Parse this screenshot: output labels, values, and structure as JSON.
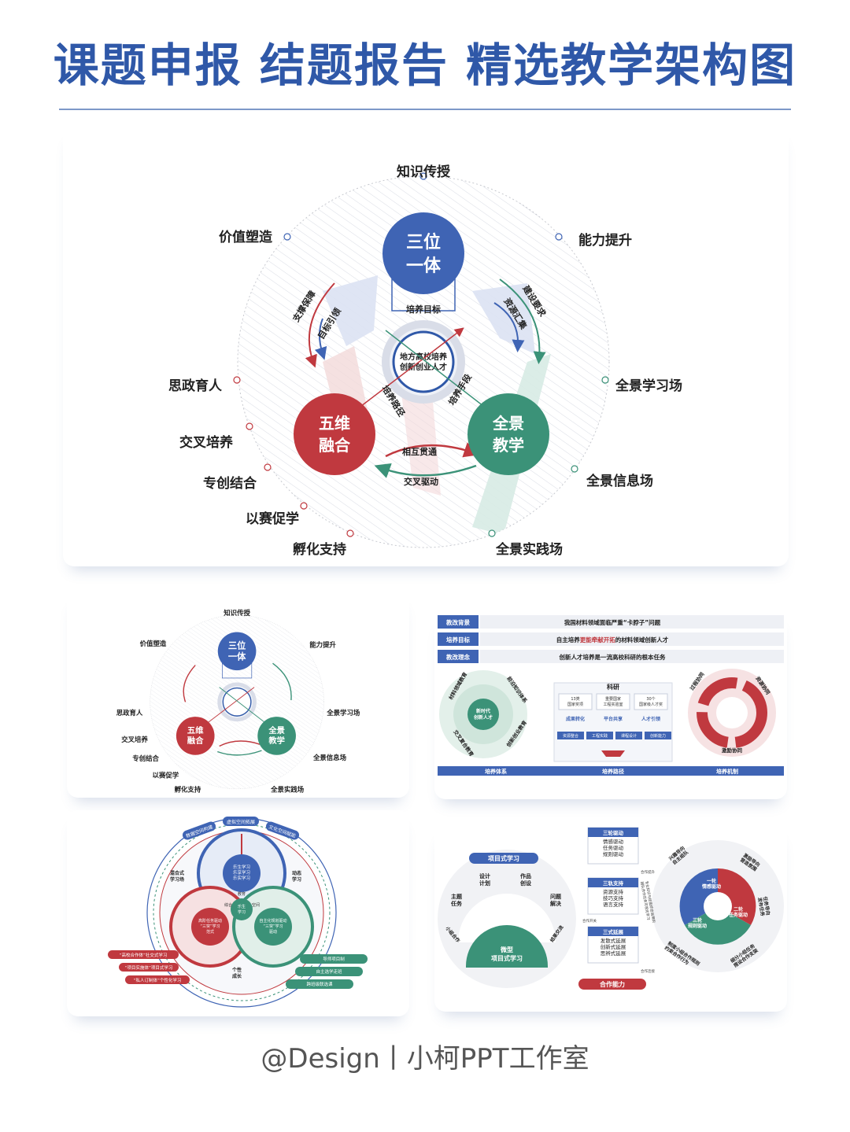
{
  "header": {
    "title": "课题申报 结题报告 精选教学架构图"
  },
  "main_diagram": {
    "top_circle": "三位\n一体",
    "left_circle": "五维\n融合",
    "right_circle": "全景\n教学",
    "center_text": "地方高校培养\n创新创业人才",
    "arrow_labels": {
      "goal": "培养目标",
      "path": "培养路径",
      "means": "培养手段",
      "left_outer": "支撑保障",
      "left_inner": "目标引领",
      "right_outer": "建设要求",
      "right_inner": "资源汇集",
      "bottom_upper": "相互贯通",
      "bottom_lower": "交叉驱动"
    },
    "outer_labels": {
      "top": "知识传授",
      "value": "价值塑造",
      "ability": "能力提升",
      "ideology": "思政育人",
      "cross": "交叉培养",
      "specialty": "专创结合",
      "competition": "以赛促学",
      "incubation": "孵化支持",
      "learning_field": "全景学习场",
      "info_field": "全景信息场",
      "practice_field": "全景实践场"
    }
  },
  "panel_material": {
    "rows": [
      {
        "tag": "教改背景",
        "text": "我国材料领域面临严重“卡脖子”问题"
      },
      {
        "tag": "培养目标",
        "text_before": "自主培养",
        "text_highlight": "更能牵献开拓",
        "text_after": "的材料领域创新人才"
      },
      {
        "tag": "教改理念",
        "text": "创新人才培养是一流高校科研的根本任务"
      }
    ],
    "left_center": "新时代\n创新人才",
    "middle_title": "科研",
    "middle_boxes": [
      "13类\n国家奖项",
      "重要国家\n工程实验室",
      "30个\n国家级人才奖"
    ],
    "middle_row2": [
      "成果转化",
      "平台共享",
      "人才引领"
    ],
    "middle_row3": [
      "资源整合",
      "工程实践",
      "课程设计",
      "创新能力"
    ],
    "left_ring": [
      "材料领域教育",
      "前沿知识体系",
      "交叉复合教育",
      "创新创业教育"
    ],
    "right_ring": [
      "过程协同",
      "资源协同",
      "激励协同"
    ],
    "bottom_labels": [
      "培养体系",
      "培养路径",
      "培养机制"
    ]
  },
  "panel_rings": {
    "top_pills": [
      "数据空间构建",
      "虚拟空间拓展",
      "文化空间赋能"
    ],
    "left_label": "混合式\n学习场",
    "right_label": "动态\n学习",
    "blue_core": "乐生学习\n乐享学习\n乐实学习",
    "center": "乐生\n学习",
    "red_core": "高阶任务驱动\n“三突”学习\n范式",
    "green_core": "自主化规划驱动\n“三突”学习\n驱动",
    "bottom_label": "个性\n成长",
    "small_labels": [
      "教育",
      "综合",
      "空间"
    ],
    "red_pills": [
      "“高校合作体”社交式学习",
      "“项目实施体”项目式学习",
      "“私人订制体”个性化学习"
    ],
    "green_pills": [
      "导师项目制",
      "自主选学走班",
      "跨班级联选课"
    ]
  },
  "panel_project": {
    "title": "项目式学习",
    "segments": [
      "设计\n计划",
      "作品\n创设",
      "主题\n任务",
      "问题\n解决",
      "小组合作",
      "结果交流"
    ],
    "bottom": "微型\n项目式学习",
    "box1_title": "三轮驱动",
    "box1_items": "情感驱动\n任务驱动\n规则驱动",
    "box2_title": "三轨支持",
    "box2_items": "资源支持\n技巧支持\n语言支持",
    "box3_title": "三式延展",
    "box3_items": "发散式延展\n创新式延展\n思辨式延展",
    "bottom_pill": "合作能力",
    "side_labels": [
      "合作提升",
      "合作开关",
      "合作连接"
    ],
    "swirl_labels": [
      "一轮\n情感驱动",
      "三轮\n规则驱动",
      "二轮\n任务驱动"
    ],
    "ring_labels": [
      "兴趣导向\n自主组队",
      "激励导向\n营造氛围",
      "任务导向\n发布任务",
      "制度小组合作规则\n约束合作行为",
      "细分小组任务\n搭设合作支架"
    ],
    "left_text": "专业知识与技能综合运用的\n团队合作任务可视化学习"
  },
  "footer": {
    "text": "@Design丨小柯PPT工作室"
  },
  "colors": {
    "blue": "#3f64b4",
    "red": "#c0393f",
    "green": "#3b9278",
    "title": "#2f58a8"
  }
}
